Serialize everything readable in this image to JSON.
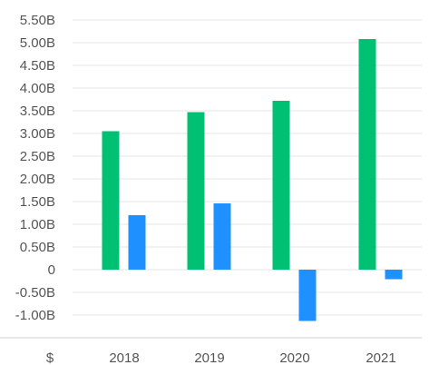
{
  "chart_data": {
    "type": "bar",
    "categories": [
      "2018",
      "2019",
      "2020",
      "2021"
    ],
    "series": [
      {
        "values": [
          3.05,
          3.47,
          3.72,
          5.08
        ],
        "color": "#00c073"
      },
      {
        "values": [
          1.2,
          1.46,
          -1.13,
          -0.21
        ],
        "color": "#1e90ff"
      }
    ],
    "ylim": [
      -1.0,
      5.5
    ],
    "y_ticks": [
      {
        "value": 5.5,
        "label": "5.50B"
      },
      {
        "value": 5.0,
        "label": "5.00B"
      },
      {
        "value": 4.5,
        "label": "4.50B"
      },
      {
        "value": 4.0,
        "label": "4.00B"
      },
      {
        "value": 3.5,
        "label": "3.50B"
      },
      {
        "value": 3.0,
        "label": "3.00B"
      },
      {
        "value": 2.5,
        "label": "2.50B"
      },
      {
        "value": 2.0,
        "label": "2.00B"
      },
      {
        "value": 1.5,
        "label": "1.50B"
      },
      {
        "value": 1.0,
        "label": "1.00B"
      },
      {
        "value": 0.5,
        "label": "0.50B"
      },
      {
        "value": 0.0,
        "label": "0"
      },
      {
        "value": -0.5,
        "label": "-0.50B"
      },
      {
        "value": -1.0,
        "label": "-1.00B"
      }
    ],
    "currency_label": "$",
    "grid": true,
    "title": "",
    "xlabel": "",
    "ylabel": ""
  }
}
